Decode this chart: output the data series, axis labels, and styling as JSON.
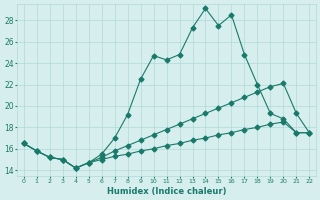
{
  "xlabel": "Humidex (Indice chaleur)",
  "xlim": [
    -0.5,
    22.5
  ],
  "ylim": [
    13.5,
    29.5
  ],
  "yticks": [
    14,
    16,
    18,
    20,
    22,
    24,
    26,
    28
  ],
  "xticks": [
    0,
    1,
    2,
    3,
    4,
    5,
    6,
    7,
    8,
    9,
    10,
    11,
    12,
    13,
    14,
    15,
    16,
    17,
    18,
    19,
    20,
    21,
    22
  ],
  "bg_color": "#d6eeee",
  "grid_color": "#b0d8d8",
  "line_color": "#1a7a6a",
  "line1_x": [
    0,
    1,
    2,
    3,
    4,
    5,
    6,
    7,
    8,
    9,
    10,
    11,
    12,
    13,
    14,
    15,
    16,
    17,
    18,
    19,
    20,
    21,
    22
  ],
  "line1_y": [
    16.5,
    15.8,
    15.2,
    15.0,
    14.2,
    14.7,
    15.5,
    17.0,
    19.2,
    22.5,
    24.7,
    24.3,
    24.8,
    27.3,
    29.1,
    27.5,
    28.5,
    24.8,
    22.0,
    19.3,
    18.8,
    17.5,
    17.5
  ],
  "line2_x": [
    0,
    1,
    2,
    3,
    4,
    5,
    6,
    7,
    8,
    9,
    10,
    11,
    12,
    13,
    14,
    15,
    16,
    17,
    18,
    19,
    20,
    21,
    22
  ],
  "line2_y": [
    16.5,
    15.8,
    15.2,
    15.0,
    14.2,
    14.7,
    15.2,
    15.8,
    16.3,
    16.8,
    17.3,
    17.8,
    18.3,
    18.8,
    19.3,
    19.8,
    20.3,
    20.8,
    21.3,
    21.8,
    22.1,
    19.3,
    17.5
  ],
  "line3_x": [
    0,
    1,
    2,
    3,
    4,
    5,
    6,
    7,
    8,
    9,
    10,
    11,
    12,
    13,
    14,
    15,
    16,
    17,
    18,
    19,
    20,
    21,
    22
  ],
  "line3_y": [
    16.5,
    15.8,
    15.2,
    15.0,
    14.2,
    14.7,
    15.0,
    15.3,
    15.5,
    15.8,
    16.0,
    16.3,
    16.5,
    16.8,
    17.0,
    17.3,
    17.5,
    17.8,
    18.0,
    18.3,
    18.5,
    17.5,
    17.5
  ]
}
